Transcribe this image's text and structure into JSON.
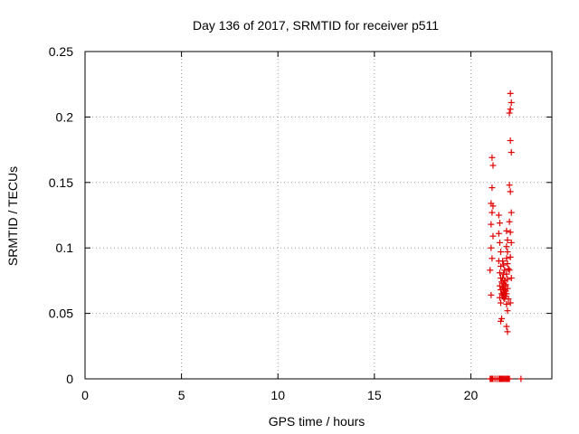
{
  "chart_data": {
    "type": "scatter",
    "title": "Day 136 of 2017, SRMTID for receiver p511",
    "xlabel": "GPS time / hours",
    "ylabel": "SRMTID / TECUs",
    "xlim": [
      0,
      24.2
    ],
    "ylim": [
      0,
      0.25
    ],
    "xticks": [
      0,
      5,
      10,
      15,
      20
    ],
    "xtick_labels": [
      "0",
      "5",
      "10",
      "15",
      "20"
    ],
    "yticks": [
      0,
      0.05,
      0.1,
      0.15,
      0.2,
      0.25
    ],
    "ytick_labels": [
      "0",
      "0.05",
      "0.1",
      "0.15",
      "0.2",
      "0.25"
    ],
    "grid": true,
    "legend": "none",
    "marker": "plus",
    "color": "#e00000",
    "series": [
      {
        "x": [
          21.0,
          21.05,
          21.1,
          21.15,
          21.25,
          21.35,
          21.45,
          21.5,
          21.55,
          21.6,
          21.65,
          21.7,
          21.75,
          21.8,
          21.85,
          21.9,
          21.95,
          22.0,
          22.6,
          21.1,
          21.15,
          21.1,
          21.05,
          21.15,
          21.1,
          21.05,
          21.15,
          21.05,
          21.1,
          21.0,
          21.05,
          21.45,
          21.5,
          21.45,
          21.5,
          21.55,
          21.45,
          21.55,
          21.5,
          21.55,
          21.6,
          21.5,
          21.55,
          21.6,
          21.5,
          21.55,
          21.6,
          21.55,
          21.65,
          21.7,
          21.75,
          21.7,
          21.65,
          21.75,
          21.7,
          21.8,
          21.65,
          21.7,
          21.75,
          21.8,
          21.7,
          21.75,
          21.65,
          21.8,
          21.7,
          21.75,
          21.85,
          21.9,
          21.85,
          21.9,
          21.85,
          21.9,
          21.95,
          21.85,
          21.9,
          21.8,
          21.9,
          21.85,
          21.95,
          21.85,
          21.9,
          21.85,
          21.9,
          22.05,
          22.1,
          22.05,
          22.0,
          22.05,
          22.1,
          22.0,
          22.05,
          22.1,
          22.0,
          22.05,
          22.1,
          22.05,
          22.0,
          22.1,
          22.05
        ],
        "y": [
          0,
          0,
          0,
          0,
          0,
          0,
          0,
          0,
          0,
          0,
          0,
          0,
          0,
          0,
          0,
          0,
          0,
          0,
          0,
          0.169,
          0.163,
          0.146,
          0.134,
          0.132,
          0.127,
          0.118,
          0.109,
          0.1,
          0.092,
          0.083,
          0.064,
          0.125,
          0.119,
          0.111,
          0.104,
          0.097,
          0.09,
          0.086,
          0.081,
          0.077,
          0.074,
          0.071,
          0.068,
          0.065,
          0.062,
          0.058,
          0.046,
          0.044,
          0.09,
          0.087,
          0.083,
          0.08,
          0.077,
          0.075,
          0.073,
          0.071,
          0.07,
          0.069,
          0.068,
          0.067,
          0.066,
          0.065,
          0.064,
          0.063,
          0.062,
          0.061,
          0.113,
          0.106,
          0.101,
          0.097,
          0.092,
          0.088,
          0.084,
          0.08,
          0.076,
          0.072,
          0.069,
          0.065,
          0.061,
          0.057,
          0.052,
          0.04,
          0.036,
          0.218,
          0.211,
          0.206,
          0.203,
          0.182,
          0.173,
          0.148,
          0.143,
          0.127,
          0.12,
          0.112,
          0.104,
          0.093,
          0.083,
          0.077,
          0.058
        ]
      }
    ]
  }
}
